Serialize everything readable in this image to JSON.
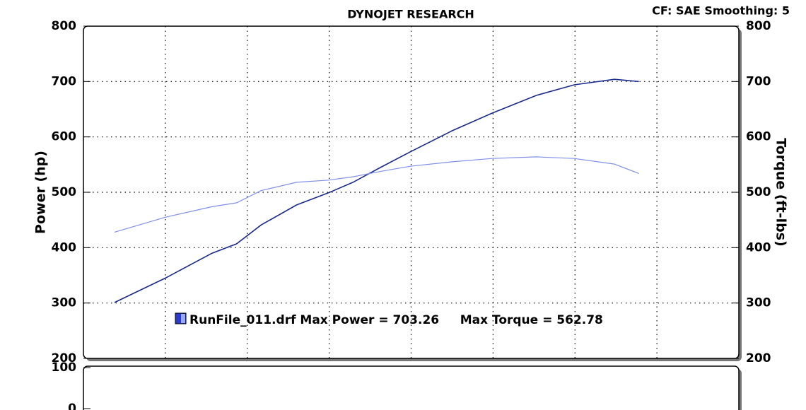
{
  "chart_data": [
    {
      "type": "line",
      "title": "DYNOJET RESEARCH",
      "subtitle": "CF: SAE  Smoothing: 5",
      "ylabel": "Power (hp)",
      "y2label": "Torque (ft-lbs)",
      "annotation": "RunFile_011.drf Max Power = 703.26     Max Torque = 562.78",
      "xlim": [
        0,
        8
      ],
      "xticks": [
        1,
        2,
        3,
        4,
        5,
        6,
        7
      ],
      "ylim": [
        200,
        800
      ],
      "yticks": [
        200,
        300,
        400,
        500,
        600,
        700,
        800
      ],
      "y2lim": [
        200,
        800
      ],
      "y2ticks": [
        200,
        300,
        400,
        500,
        600,
        700,
        800
      ],
      "grid": true,
      "x": [
        0.38,
        1,
        1.57,
        1.87,
        2.17,
        2.6,
        2.99,
        3.29,
        3.64,
        3.99,
        4.5,
        4.99,
        5.53,
        5.99,
        6.48,
        6.78
      ],
      "series": [
        {
          "name": "Power",
          "color": "#1a2a8c",
          "values": [
            301,
            345,
            390,
            407,
            441,
            477,
            499,
            518,
            546,
            573,
            611,
            643,
            675,
            694,
            704,
            700
          ]
        },
        {
          "name": "Torque",
          "color": "#7f8fe8",
          "axis": "y2",
          "values": [
            428,
            455,
            474,
            481,
            503,
            518,
            522,
            528,
            538,
            547,
            555,
            561,
            564,
            561,
            551,
            534
          ]
        }
      ]
    },
    {
      "type": "line",
      "ylim": [
        0,
        100
      ],
      "yticks": [
        0,
        100
      ]
    }
  ]
}
